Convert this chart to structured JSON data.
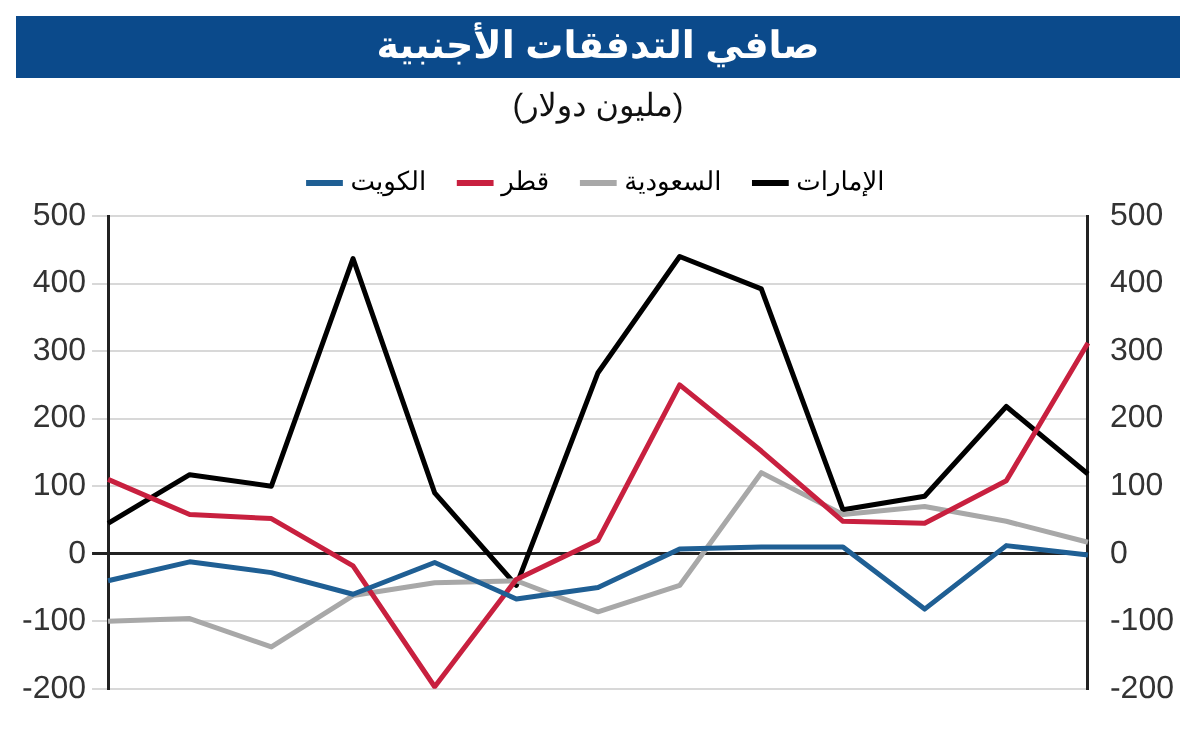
{
  "chart_data": {
    "type": "line",
    "title": "صافي التدفقات الأجنبية",
    "subtitle": "(مليون دولار)",
    "categories": [
      null,
      null,
      null,
      null,
      null,
      null,
      null,
      null,
      null,
      null,
      null,
      null,
      null
    ],
    "series": [
      {
        "name": "الكويت",
        "color": "#1f5f94",
        "values": [
          -40,
          -12,
          -28,
          -60,
          -13,
          -67,
          -50,
          7,
          10,
          10,
          -82,
          12,
          -2
        ]
      },
      {
        "name": "قطر",
        "color": "#c8203f",
        "values": [
          110,
          58,
          52,
          -18,
          -197,
          -38,
          20,
          250,
          152,
          48,
          45,
          108,
          312
        ]
      },
      {
        "name": "السعودية",
        "color": "#a8a8a8",
        "values": [
          -100,
          -96,
          -138,
          -62,
          -43,
          -40,
          -86,
          -47,
          120,
          58,
          70,
          48,
          17
        ]
      },
      {
        "name": "الإمارات",
        "color": "#000000",
        "values": [
          45,
          117,
          100,
          437,
          90,
          -47,
          268,
          440,
          392,
          65,
          85,
          218,
          118
        ]
      }
    ],
    "ylim": [
      -200,
      500
    ],
    "yticks": [
      -200,
      -100,
      0,
      100,
      200,
      300,
      400,
      500
    ],
    "y2lim": [
      -200,
      500
    ],
    "y2ticks": [
      -200,
      -100,
      0,
      100,
      200,
      300,
      400,
      500
    ],
    "grid": "y",
    "legend": "top",
    "marker": "none",
    "line_style": "solid",
    "tick_labels": "y"
  }
}
